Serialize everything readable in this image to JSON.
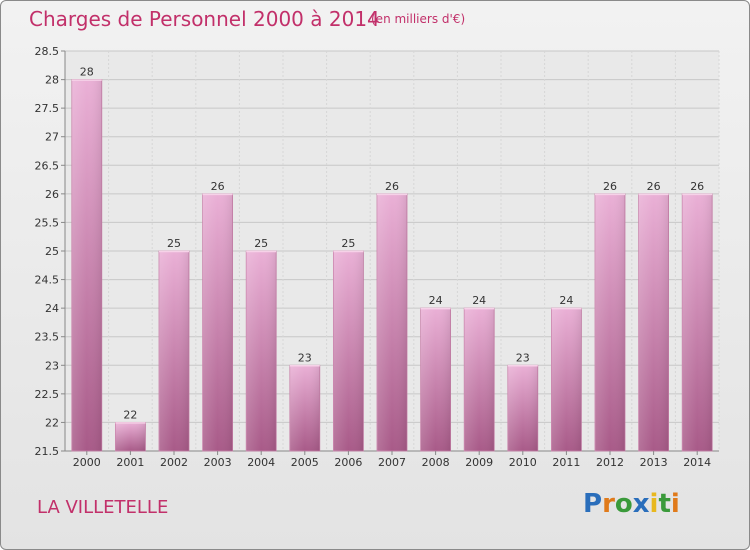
{
  "header": {
    "title": "Charges de Personnel 2000 à 2014",
    "subtitle": "(en milliers d'€)"
  },
  "footer": {
    "commune": "LA VILLETELLE",
    "logo_text": "Proxiti",
    "logo_letters": [
      {
        "ch": "P",
        "color": "#2a6ebb"
      },
      {
        "ch": "r",
        "color": "#e07a1a"
      },
      {
        "ch": "o",
        "color": "#3a9a3a"
      },
      {
        "ch": "x",
        "color": "#2a6ebb"
      },
      {
        "ch": "i",
        "color": "#e8b81e"
      },
      {
        "ch": "t",
        "color": "#3a9a3a"
      },
      {
        "ch": "i",
        "color": "#e07a1a"
      }
    ]
  },
  "colors": {
    "accent": "#c2306a",
    "bar_light": "#e8a8d0",
    "bar_dark": "#b06090",
    "grid": "#cccccc"
  },
  "chart_data": {
    "type": "bar",
    "title": "Charges de Personnel 2000 à 2014",
    "subtitle": "(en milliers d'€)",
    "xlabel": "",
    "ylabel": "",
    "categories": [
      "2000",
      "2001",
      "2002",
      "2003",
      "2004",
      "2005",
      "2006",
      "2007",
      "2008",
      "2009",
      "2010",
      "2011",
      "2012",
      "2013",
      "2014"
    ],
    "values": [
      28,
      22,
      25,
      26,
      25,
      23,
      25,
      26,
      24,
      24,
      23,
      24,
      26,
      26,
      26
    ],
    "ylim": [
      21.5,
      28.5
    ],
    "yticks": [
      "21.5",
      "22",
      "22.5",
      "23",
      "23.5",
      "24",
      "24.5",
      "25",
      "25.5",
      "26",
      "26.5",
      "27",
      "27.5",
      "28",
      "28.5"
    ],
    "grid": true,
    "legend": "none"
  }
}
